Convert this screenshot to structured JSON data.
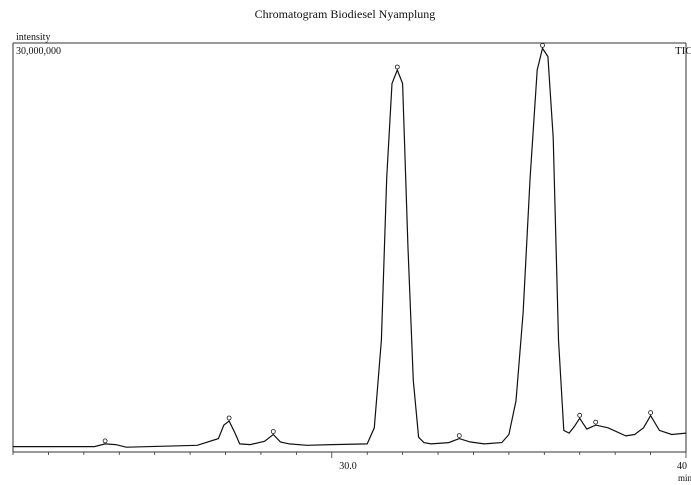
{
  "chart_data": {
    "type": "line",
    "title": "Chromatogram Biodiesel  Nyamplung",
    "ylabel": "intensity",
    "y_max_label": "30,000,000",
    "xlabel": "min",
    "trace_label": "TIC",
    "x_ticks": [
      "30.0",
      "40"
    ],
    "xlim": [
      21.0,
      40.0
    ],
    "ylim": [
      0,
      30000000
    ],
    "grid": false,
    "series": [
      {
        "x": [
          21.0,
          23.3,
          23.6,
          23.9,
          24.2,
          26.2,
          26.8,
          26.95,
          27.1,
          27.25,
          27.4,
          27.7,
          28.1,
          28.35,
          28.55,
          28.8,
          29.3,
          30.0,
          31.0,
          31.2,
          31.4,
          31.55,
          31.7,
          31.85,
          32.0,
          32.15,
          32.3,
          32.45,
          32.6,
          32.8,
          33.3,
          33.6,
          33.9,
          34.3,
          34.8,
          35.0,
          35.2,
          35.4,
          35.6,
          35.8,
          35.95,
          36.1,
          36.25,
          36.4,
          36.55,
          36.7,
          36.85,
          37.0,
          37.2,
          37.45,
          37.8,
          38.3,
          38.55,
          38.8,
          39.0,
          39.25,
          39.6,
          40.0
        ],
        "y": [
          100000,
          100000,
          300000,
          250000,
          60000,
          200000,
          700000,
          1700000,
          2000000,
          1200000,
          300000,
          250000,
          500000,
          1000000,
          450000,
          300000,
          200000,
          250000,
          300000,
          1500000,
          8000000,
          20000000,
          27000000,
          28000000,
          27000000,
          15000000,
          5000000,
          800000,
          400000,
          300000,
          400000,
          700000,
          450000,
          300000,
          400000,
          1000000,
          3500000,
          10000000,
          20000000,
          28000000,
          29600000,
          29000000,
          23000000,
          8000000,
          1300000,
          1100000,
          1600000,
          2200000,
          1400000,
          1700000,
          1500000,
          900000,
          1000000,
          1500000,
          2400000,
          1300000,
          1000000,
          1100000
        ]
      }
    ]
  }
}
